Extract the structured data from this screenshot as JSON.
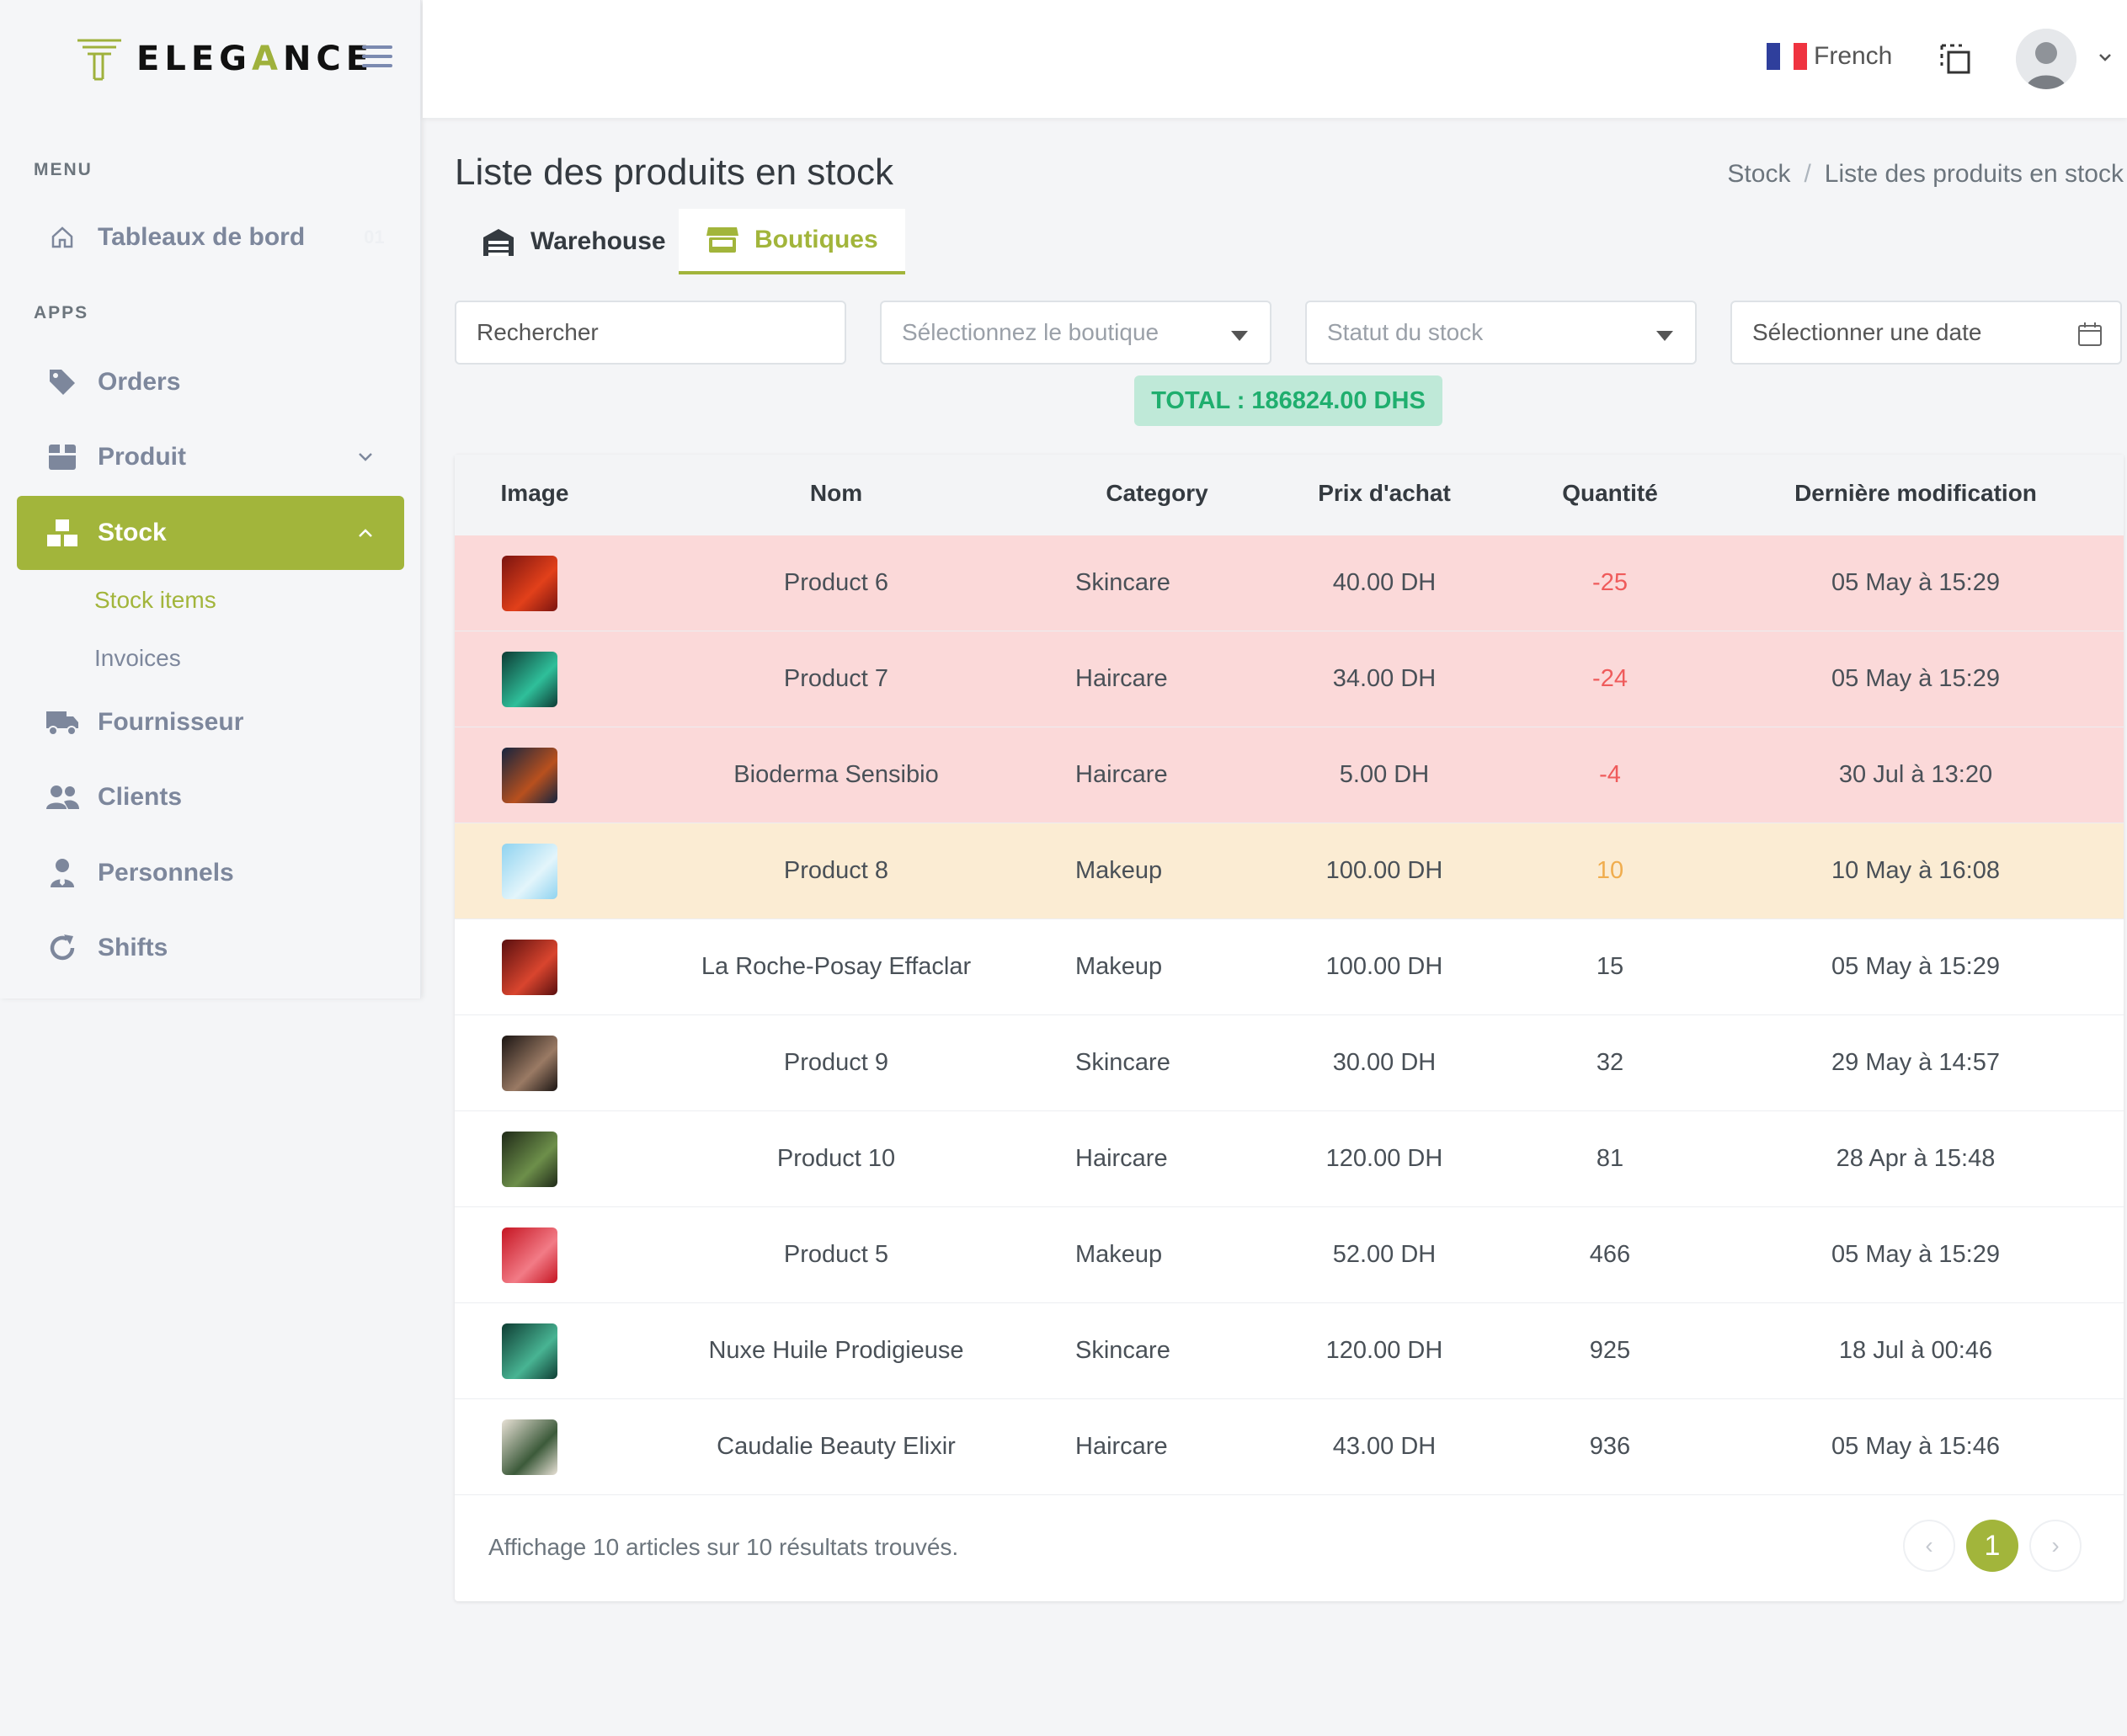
{
  "brand": {
    "name_a": "ELEG",
    "name_b": "A",
    "name_c": "NCE"
  },
  "sidebar": {
    "menu_title": "MENU",
    "apps_title": "APPS",
    "dashboard": {
      "label": "Tableaux de bord",
      "badge": "01"
    },
    "orders": "Orders",
    "produit": "Produit",
    "stock": "Stock",
    "stock_items": "Stock items",
    "invoices": "Invoices",
    "fournisseur": "Fournisseur",
    "clients": "Clients",
    "personnels": "Personnels",
    "shifts": "Shifts"
  },
  "topbar": {
    "language": "French"
  },
  "page": {
    "title": "Liste des produits en stock",
    "breadcrumb": [
      "Stock",
      "Liste des produits en stock"
    ]
  },
  "tabs": {
    "warehouse": "Warehouse",
    "boutiques": "Boutiques"
  },
  "filters": {
    "search": "Rechercher",
    "boutique": "Sélectionnez le boutique",
    "status": "Statut du stock",
    "date": "Sélectionner une date"
  },
  "total": "TOTAL : 186824.00 DHS",
  "table": {
    "headers": [
      "Image",
      "Nom",
      "Category",
      "Prix d'achat",
      "Quantité",
      "Dernière modification"
    ],
    "rows": [
      {
        "name": "Product 6",
        "category": "Skincare",
        "price": "40.00 DH",
        "qty": "-25",
        "date": "05 May à 15:29",
        "state": "neg",
        "c1": "#7a1410",
        "c2": "#e2401a"
      },
      {
        "name": "Product 7",
        "category": "Haircare",
        "price": "34.00 DH",
        "qty": "-24",
        "date": "05 May à 15:29",
        "state": "neg",
        "c1": "#0d3b34",
        "c2": "#2fbf9a"
      },
      {
        "name": "Bioderma Sensibio",
        "category": "Haircare",
        "price": "5.00 DH",
        "qty": "-4",
        "date": "30 Jul à 13:20",
        "state": "neg",
        "c1": "#15243f",
        "c2": "#b8501e"
      },
      {
        "name": "Product 8",
        "category": "Makeup",
        "price": "100.00 DH",
        "qty": "10",
        "date": "10 May à 16:08",
        "state": "low",
        "c1": "#8fd3f0",
        "c2": "#e3f5fb"
      },
      {
        "name": "La Roche-Posay Effaclar",
        "category": "Makeup",
        "price": "100.00 DH",
        "qty": "15",
        "date": "05 May à 15:29",
        "state": "ok",
        "c1": "#5a0f0f",
        "c2": "#d9452e"
      },
      {
        "name": "Product 9",
        "category": "Skincare",
        "price": "30.00 DH",
        "qty": "32",
        "date": "29 May à 14:57",
        "state": "ok",
        "c1": "#1b1513",
        "c2": "#9a7a64"
      },
      {
        "name": "Product 10",
        "category": "Haircare",
        "price": "120.00 DH",
        "qty": "81",
        "date": "28 Apr à 15:48",
        "state": "ok",
        "c1": "#1f2a18",
        "c2": "#6d8f4a"
      },
      {
        "name": "Product 5",
        "category": "Makeup",
        "price": "52.00 DH",
        "qty": "466",
        "date": "05 May à 15:29",
        "state": "ok",
        "c1": "#c51522",
        "c2": "#f27b86"
      },
      {
        "name": "Nuxe Huile Prodigieuse",
        "category": "Skincare",
        "price": "120.00 DH",
        "qty": "925",
        "date": "18 Jul à 00:46",
        "state": "ok",
        "c1": "#0e3d33",
        "c2": "#48b493"
      },
      {
        "name": "Caudalie Beauty Elixir",
        "category": "Haircare",
        "price": "43.00 DH",
        "qty": "936",
        "date": "05 May à 15:46",
        "state": "ok",
        "c1": "#e8e1d6",
        "c2": "#3c5a3a"
      }
    ]
  },
  "footer": {
    "summary": "Affichage 10 articles sur 10 résultats trouvés.",
    "prev": "‹",
    "page": "1",
    "next": "›"
  },
  "colors": {
    "accent": "#a2b53b",
    "negative_row": "#fbd9d9",
    "low_row": "#fbecd3",
    "total_text": "#1fae6e"
  }
}
